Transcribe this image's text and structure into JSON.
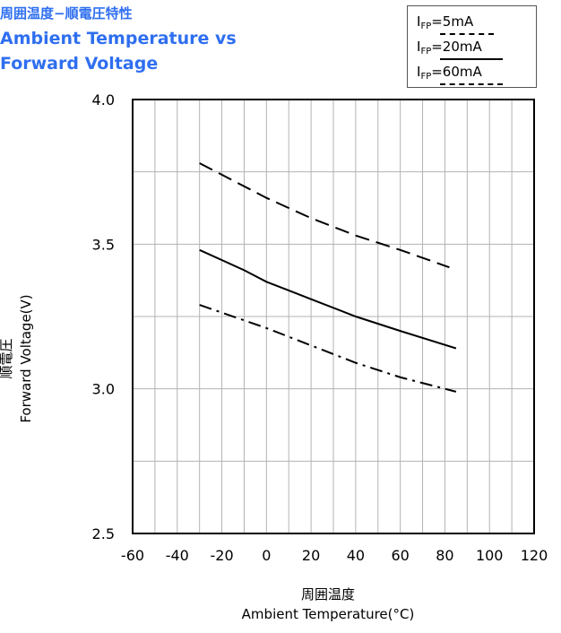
{
  "titles": {
    "jp": "周囲温度−順電圧特性",
    "en_line1": "Ambient Temperature vs",
    "en_line2": "Forward Voltage"
  },
  "axis": {
    "ylabel_jp": "順電圧",
    "ylabel_en": "Forward Voltage(V)",
    "xlabel_jp": "周囲温度",
    "xlabel_en": "Ambient Temperature(°C)"
  },
  "legend": [
    {
      "base": "I",
      "sub": "FP",
      "suffix": "=5mA",
      "style": "dashdot"
    },
    {
      "base": "I",
      "sub": "FP",
      "suffix": "=20mA",
      "style": "solid"
    },
    {
      "base": "I",
      "sub": "FP",
      "suffix": "=60mA",
      "style": "dashed"
    }
  ],
  "chart_data": {
    "type": "line",
    "xlabel": "周囲温度 Ambient Temperature(°C)",
    "ylabel": "順電圧 Forward Voltage(V)",
    "xlim": [
      -60,
      120
    ],
    "ylim": [
      2.5,
      4.0
    ],
    "x_ticks": [
      "-60",
      "-40",
      "-20",
      "0",
      "20",
      "40",
      "60",
      "80",
      "100",
      "120"
    ],
    "y_ticks": [
      "2.5",
      "3.0",
      "3.5",
      "4.0"
    ],
    "grid": true,
    "legend_position": "top-right",
    "series": [
      {
        "name": "IFP=5mA",
        "style": "dashdot",
        "x": [
          -30,
          0,
          20,
          40,
          60,
          85
        ],
        "y": [
          3.29,
          3.21,
          3.15,
          3.09,
          3.04,
          2.99
        ]
      },
      {
        "name": "IFP=20mA",
        "style": "solid",
        "x": [
          -30,
          -10,
          0,
          10,
          20,
          40,
          60,
          85
        ],
        "y": [
          3.48,
          3.41,
          3.37,
          3.34,
          3.31,
          3.25,
          3.2,
          3.14
        ]
      },
      {
        "name": "IFP=60mA",
        "style": "dashed",
        "x": [
          -30,
          0,
          20,
          40,
          60,
          82
        ],
        "y": [
          3.78,
          3.66,
          3.59,
          3.53,
          3.48,
          3.42
        ]
      }
    ]
  }
}
